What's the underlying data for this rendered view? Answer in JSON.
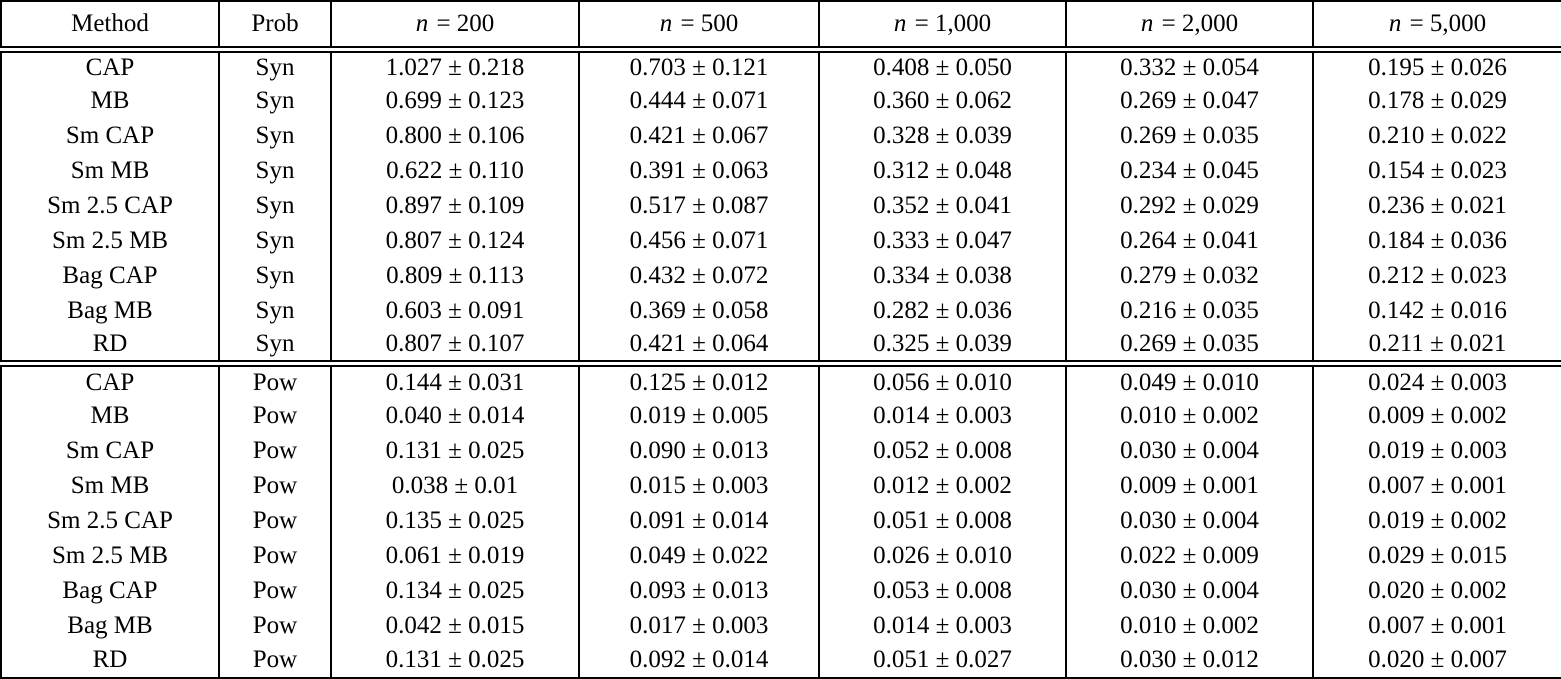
{
  "table": {
    "columns": [
      {
        "label": "Method"
      },
      {
        "label": "Prob"
      },
      {
        "var": "n",
        "value": "200"
      },
      {
        "var": "n",
        "value": "500"
      },
      {
        "var": "n",
        "value": "1,000"
      },
      {
        "var": "n",
        "value": "2,000"
      },
      {
        "var": "n",
        "value": "5,000"
      }
    ],
    "plus_minus_symbol": "±",
    "sections": [
      {
        "name": "Syn",
        "rows": [
          {
            "method": "CAP",
            "prob": "Syn",
            "cells": [
              "1.027 ± 0.218",
              "0.703 ± 0.121",
              "0.408 ± 0.050",
              "0.332 ± 0.054",
              "0.195 ± 0.026"
            ],
            "bold": [
              0,
              0,
              0,
              0,
              0
            ]
          },
          {
            "method": "MB",
            "prob": "Syn",
            "cells": [
              "0.699 ± 0.123",
              "0.444 ± 0.071",
              "0.360 ± 0.062",
              "0.269 ± 0.047",
              "0.178 ± 0.029"
            ],
            "bold": [
              0,
              0,
              0,
              0,
              0
            ]
          },
          {
            "method": "Sm CAP",
            "prob": "Syn",
            "cells": [
              "0.800 ± 0.106",
              "0.421 ± 0.067",
              "0.328 ± 0.039",
              "0.269 ± 0.035",
              "0.210 ± 0.022"
            ],
            "bold": [
              0,
              0,
              0,
              0,
              0
            ]
          },
          {
            "method": "Sm MB",
            "prob": "Syn",
            "cells": [
              "0.622 ± 0.110",
              "0.391 ± 0.063",
              "0.312 ± 0.048",
              "0.234 ± 0.045",
              "0.154 ± 0.023"
            ],
            "bold": [
              0,
              0,
              0,
              0,
              0
            ]
          },
          {
            "method": "Sm 2.5 CAP",
            "prob": "Syn",
            "cells": [
              "0.897 ± 0.109",
              "0.517 ± 0.087",
              "0.352 ± 0.041",
              "0.292 ± 0.029",
              "0.236 ± 0.021"
            ],
            "bold": [
              0,
              0,
              0,
              0,
              0
            ]
          },
          {
            "method": "Sm 2.5 MB",
            "prob": "Syn",
            "cells": [
              "0.807 ± 0.124",
              "0.456 ± 0.071",
              "0.333 ± 0.047",
              "0.264 ± 0.041",
              "0.184 ± 0.036"
            ],
            "bold": [
              0,
              0,
              0,
              0,
              0
            ]
          },
          {
            "method": "Bag CAP",
            "prob": "Syn",
            "cells": [
              "0.809 ± 0.113",
              "0.432 ± 0.072",
              "0.334 ± 0.038",
              "0.279 ± 0.032",
              "0.212 ± 0.023"
            ],
            "bold": [
              0,
              0,
              0,
              0,
              0
            ]
          },
          {
            "method": "Bag MB",
            "prob": "Syn",
            "cells": [
              "0.603 ± 0.091",
              "0.369 ± 0.058",
              "0.282 ± 0.036",
              "0.216 ± 0.035",
              "0.142 ± 0.016"
            ],
            "bold": [
              1,
              1,
              1,
              1,
              1
            ]
          },
          {
            "method": "RD",
            "prob": "Syn",
            "cells": [
              "0.807 ± 0.107",
              "0.421 ± 0.064",
              "0.325 ± 0.039",
              "0.269 ± 0.035",
              "0.211 ± 0.021"
            ],
            "bold": [
              0,
              0,
              0,
              0,
              0
            ]
          }
        ]
      },
      {
        "name": "Pow",
        "rows": [
          {
            "method": "CAP",
            "prob": "Pow",
            "cells": [
              "0.144 ± 0.031",
              "0.125 ± 0.012",
              "0.056 ± 0.010",
              "0.049 ± 0.010",
              "0.024 ± 0.003"
            ],
            "bold": [
              0,
              0,
              0,
              0,
              0
            ]
          },
          {
            "method": "MB",
            "prob": "Pow",
            "cells": [
              "0.040 ± 0.014",
              "0.019 ± 0.005",
              "0.014 ± 0.003",
              "0.010 ± 0.002",
              "0.009 ± 0.002"
            ],
            "bold": [
              0,
              0,
              0,
              0,
              0
            ]
          },
          {
            "method": "Sm CAP",
            "prob": "Pow",
            "cells": [
              "0.131 ± 0.025",
              "0.090 ± 0.013",
              "0.052 ± 0.008",
              "0.030 ± 0.004",
              "0.019 ± 0.003"
            ],
            "bold": [
              0,
              0,
              0,
              0,
              0
            ]
          },
          {
            "method": "Sm MB",
            "prob": "Pow",
            "cells": [
              "0.038 ± 0.01",
              "0.015 ± 0.003",
              "0.012 ± 0.002",
              "0.009 ± 0.001",
              "0.007 ± 0.001"
            ],
            "bold": [
              1,
              1,
              1,
              1,
              1
            ]
          },
          {
            "method": "Sm 2.5 CAP",
            "prob": "Pow",
            "cells": [
              "0.135 ± 0.025",
              "0.091 ± 0.014",
              "0.051 ± 0.008",
              "0.030 ± 0.004",
              "0.019 ± 0.002"
            ],
            "bold": [
              0,
              0,
              0,
              0,
              0
            ]
          },
          {
            "method": "Sm 2.5 MB",
            "prob": "Pow",
            "cells": [
              "0.061 ± 0.019",
              "0.049 ± 0.022",
              "0.026 ± 0.010",
              "0.022 ± 0.009",
              "0.029 ± 0.015"
            ],
            "bold": [
              0,
              0,
              0,
              0,
              0
            ]
          },
          {
            "method": "Bag CAP",
            "prob": "Pow",
            "cells": [
              "0.134 ± 0.025",
              "0.093 ± 0.013",
              "0.053 ± 0.008",
              "0.030 ± 0.004",
              "0.020 ± 0.002"
            ],
            "bold": [
              0,
              0,
              0,
              0,
              0
            ]
          },
          {
            "method": "Bag MB",
            "prob": "Pow",
            "cells": [
              "0.042 ± 0.015",
              "0.017 ± 0.003",
              "0.014 ± 0.003",
              "0.010 ± 0.002",
              "0.007 ± 0.001"
            ],
            "bold": [
              0,
              0,
              0,
              0,
              1
            ]
          },
          {
            "method": "RD",
            "prob": "Pow",
            "cells": [
              "0.131 ± 0.025",
              "0.092 ± 0.014",
              "0.051 ± 0.027",
              "0.030 ± 0.012",
              "0.020 ± 0.007"
            ],
            "bold": [
              0,
              0,
              0,
              0,
              0
            ]
          }
        ]
      }
    ]
  }
}
